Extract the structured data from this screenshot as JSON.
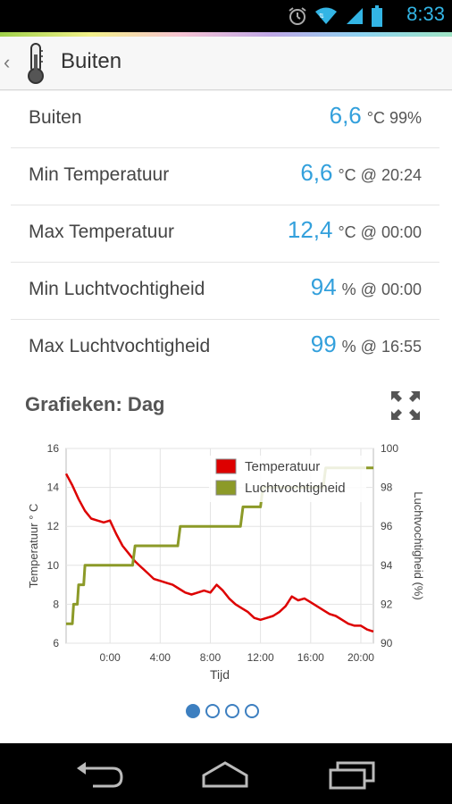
{
  "status_bar": {
    "time": "8:33",
    "icons": [
      "alarm-icon",
      "wifi-icon",
      "signal-icon",
      "battery-icon"
    ]
  },
  "action_bar": {
    "title": "Buiten",
    "icon": "thermometer-icon"
  },
  "rows": [
    {
      "label": "Buiten",
      "value": "6,6",
      "unit": "°C 99%"
    },
    {
      "label": "Min Temperatuur",
      "value": "6,6",
      "unit": "°C @ 20:24"
    },
    {
      "label": "Max Temperatuur",
      "value": "12,4",
      "unit": "°C @ 00:00"
    },
    {
      "label": "Min Luchtvochtigheid",
      "value": "94",
      "unit": "% @ 00:00"
    },
    {
      "label": "Max Luchtvochtigheid",
      "value": "99",
      "unit": "% @ 16:55"
    }
  ],
  "section": {
    "title": "Grafieken: Dag"
  },
  "colors": {
    "accent": "#33a0dc",
    "temperature": "#dd0000",
    "humidity": "#8c9a28"
  },
  "chart_data": {
    "type": "line",
    "xlabel": "Tijd",
    "ylabel_left": "Temperatuur ° C",
    "ylabel_right": "Luchtvochtigheid (%)",
    "x_ticks": [
      "0:00",
      "4:00",
      "8:00",
      "12:00",
      "16:00",
      "20:00"
    ],
    "x_tick_hours": [
      0,
      4,
      8,
      12,
      16,
      20
    ],
    "xlim": [
      -3.5,
      21
    ],
    "ylim_left": [
      6,
      16
    ],
    "y_ticks_left": [
      6,
      8,
      10,
      12,
      14,
      16
    ],
    "ylim_right": [
      90,
      100
    ],
    "y_ticks_right": [
      90,
      92,
      94,
      96,
      98,
      100
    ],
    "grid": true,
    "legend_position": "top-right",
    "series": [
      {
        "name": "Temperatuur",
        "axis": "left",
        "x": [
          -3.5,
          -3.0,
          -2.5,
          -2.0,
          -1.5,
          -1.0,
          -0.5,
          0.0,
          0.5,
          1.0,
          1.5,
          2.0,
          2.5,
          3.0,
          3.5,
          4.0,
          4.5,
          5.0,
          5.5,
          6.0,
          6.5,
          7.0,
          7.5,
          8.0,
          8.5,
          9.0,
          9.5,
          10.0,
          10.5,
          11.0,
          11.5,
          12.0,
          12.5,
          13.0,
          13.5,
          14.0,
          14.5,
          15.0,
          15.5,
          16.0,
          16.5,
          17.0,
          17.5,
          18.0,
          18.5,
          19.0,
          19.5,
          20.0,
          20.5,
          21.0
        ],
        "values": [
          14.7,
          14.1,
          13.4,
          12.8,
          12.4,
          12.3,
          12.2,
          12.3,
          11.6,
          11.0,
          10.6,
          10.2,
          9.9,
          9.6,
          9.3,
          9.2,
          9.1,
          9.0,
          8.8,
          8.6,
          8.5,
          8.6,
          8.7,
          8.6,
          9.0,
          8.7,
          8.3,
          8.0,
          7.8,
          7.6,
          7.3,
          7.2,
          7.3,
          7.4,
          7.6,
          7.9,
          8.4,
          8.2,
          8.3,
          8.1,
          7.9,
          7.7,
          7.5,
          7.4,
          7.2,
          7.0,
          6.9,
          6.9,
          6.7,
          6.6
        ]
      },
      {
        "name": "Luchtvochtigheid",
        "axis": "right",
        "x": [
          -3.5,
          -3.0,
          -2.9,
          -2.6,
          -2.5,
          -2.1,
          -2.0,
          -1.5,
          -1.4,
          1.8,
          2.0,
          5.4,
          5.6,
          10.4,
          10.6,
          12.0,
          12.2,
          17.0,
          17.2,
          21.0
        ],
        "values": [
          91,
          91,
          92,
          92,
          93,
          93,
          94,
          94,
          94,
          94,
          95,
          95,
          96,
          96,
          97,
          97,
          98,
          98,
          99,
          99
        ]
      }
    ]
  },
  "pager": {
    "pages": 4,
    "active": 0
  },
  "nav_bar": {
    "buttons": [
      "back-icon",
      "home-icon",
      "recents-icon"
    ]
  }
}
